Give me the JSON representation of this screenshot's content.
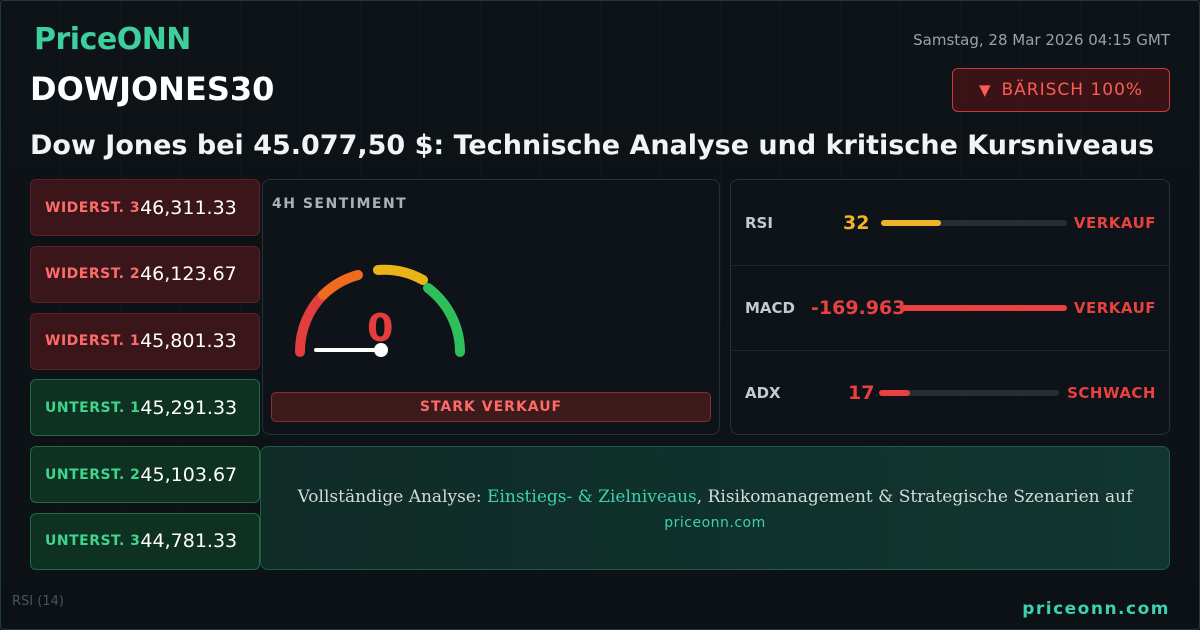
{
  "brand": {
    "logo_text": "PriceONN",
    "footer_url": "priceonn.com"
  },
  "datetime": "Samstag, 28 Mar 2026 04:15 GMT",
  "symbol": "DOWJONES30",
  "badge": {
    "icon": "triangle-down-icon",
    "label": "BÄRISCH 100%"
  },
  "headline": "Dow Jones bei 45.077,50 $: Technische Analyse und kritische Kursniveaus",
  "levels": [
    {
      "type": "resistance",
      "label": "WIDERST. 3",
      "value": "46,311.33"
    },
    {
      "type": "resistance",
      "label": "WIDERST. 2",
      "value": "46,123.67"
    },
    {
      "type": "resistance",
      "label": "WIDERST. 1",
      "value": "45,801.33"
    },
    {
      "type": "support",
      "label": "UNTERST. 1",
      "value": "45,291.33"
    },
    {
      "type": "support",
      "label": "UNTERST. 2",
      "value": "45,103.67"
    },
    {
      "type": "support",
      "label": "UNTERST. 3",
      "value": "44,781.33"
    }
  ],
  "sentiment": {
    "title": "4H SENTIMENT",
    "value": "0",
    "gauge_level": 0,
    "signal": "STARK VERKAUF"
  },
  "indicators": [
    {
      "name": "RSI",
      "value": "32",
      "fill_fraction": 0.32,
      "value_color": "#f0b429",
      "bar_color": "#f0b429",
      "signal": "VERKAUF"
    },
    {
      "name": "MACD",
      "value": "-169.963",
      "fill_fraction": 1.0,
      "value_color": "#e8413f",
      "bar_color": "#e8413f",
      "signal": "VERKAUF"
    },
    {
      "name": "ADX",
      "value": "17",
      "fill_fraction": 0.17,
      "value_color": "#e8413f",
      "bar_color": "#e8413f",
      "signal": "SCHWACH"
    }
  ],
  "cta": {
    "text_before": "Vollständige Analyse: ",
    "highlight": "Einstiegs- & Zielniveaus",
    "text_after": ", Risikomanagement & Strategische Szenarien auf",
    "url": "priceonn.com"
  },
  "background": {
    "rsi_label": "RSI (14)"
  },
  "colors": {
    "accent": "#3ecf9d",
    "bearish": "#e8413f",
    "bullish": "#3ed58c"
  }
}
